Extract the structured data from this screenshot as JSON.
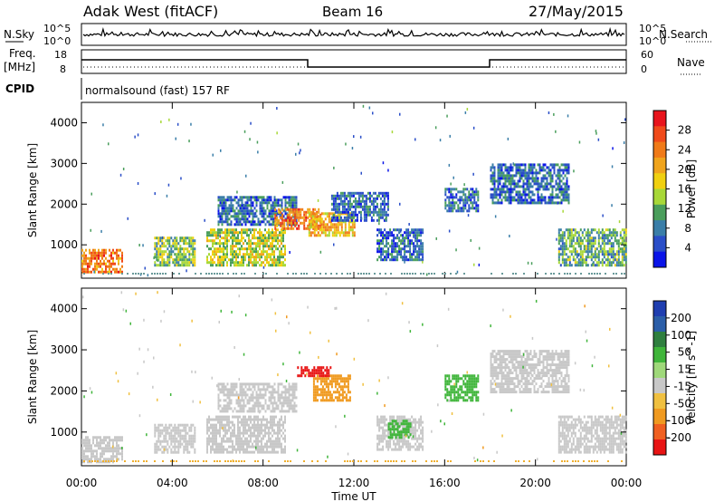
{
  "header": {
    "station": "Adak West (fitACF)",
    "beam": "Beam 16",
    "date": "27/May/2015"
  },
  "top_panels": {
    "nsky_label": "N.Sky",
    "nsearch_label": "N.Search",
    "freq_label_1": "Freq.",
    "freq_label_2": "[MHz]",
    "nave_label": "Nave",
    "cpid_label": "CPID",
    "cpid_text": "normalsound (fast) 157 RF",
    "noise_ticks_left": [
      "10^5",
      "10^0"
    ],
    "noise_ticks_right": [
      "10^5",
      "10^0"
    ],
    "freq_ticks": [
      "18",
      "8"
    ],
    "nave_ticks": [
      "60",
      "0"
    ]
  },
  "chart_data": [
    {
      "type": "heatmap",
      "title": "",
      "xlabel": "Time UT",
      "ylabel": "Slant Range [km]",
      "xticks": [
        "00:00",
        "04:00",
        "08:00",
        "12:00",
        "16:00",
        "20:00",
        "00:00"
      ],
      "xlim_hours": [
        0,
        24
      ],
      "ylim": [
        180,
        4500
      ],
      "yticks": [
        1000,
        2000,
        3000,
        4000
      ],
      "colorbar": {
        "label": "Power [dB]",
        "ticks": [
          28,
          24,
          20,
          16,
          12,
          8,
          4
        ],
        "colors": [
          "#e8141c",
          "#f04a1a",
          "#f07a18",
          "#f0a41c",
          "#f0d010",
          "#a8d838",
          "#4a9e5c",
          "#3a7ea8",
          "#2a4ec8",
          "#0a14e8"
        ]
      },
      "regions": [
        {
          "t0": 0.0,
          "t1": 1.8,
          "r0": 300,
          "r1": 900,
          "level": 24
        },
        {
          "t0": 3.2,
          "t1": 5.0,
          "r0": 500,
          "r1": 1200,
          "level": 14
        },
        {
          "t0": 5.5,
          "t1": 9.0,
          "r0": 500,
          "r1": 1400,
          "level": 16
        },
        {
          "t0": 6.0,
          "t1": 9.5,
          "r0": 1500,
          "r1": 2200,
          "level": 8
        },
        {
          "t0": 8.5,
          "t1": 10.5,
          "r0": 1400,
          "r1": 1900,
          "level": 24
        },
        {
          "t0": 10.0,
          "t1": 12.0,
          "r0": 1200,
          "r1": 1800,
          "level": 20
        },
        {
          "t0": 11.0,
          "t1": 13.5,
          "r0": 1600,
          "r1": 2300,
          "level": 8
        },
        {
          "t0": 13.0,
          "t1": 15.0,
          "r0": 600,
          "r1": 1400,
          "level": 8
        },
        {
          "t0": 16.0,
          "t1": 17.5,
          "r0": 1800,
          "r1": 2400,
          "level": 8
        },
        {
          "t0": 18.0,
          "t1": 21.5,
          "r0": 2000,
          "r1": 3000,
          "level": 8
        },
        {
          "t0": 21.0,
          "t1": 24.0,
          "r0": 500,
          "r1": 1400,
          "level": 12
        }
      ]
    },
    {
      "type": "heatmap",
      "title": "",
      "xlabel": "Time UT",
      "ylabel": "Slant Range [km]",
      "xticks": [
        "00:00",
        "04:00",
        "08:00",
        "12:00",
        "16:00",
        "20:00",
        "00:00"
      ],
      "xlim_hours": [
        0,
        24
      ],
      "ylim": [
        180,
        4500
      ],
      "yticks": [
        1000,
        2000,
        3000,
        4000
      ],
      "colorbar": {
        "label": "Velocity [m s^-1]",
        "ticks": [
          200,
          100,
          50,
          15,
          -15,
          -50,
          -100,
          -200
        ],
        "colors": [
          "#1f3eb0",
          "#2b5ea8",
          "#2f7f3f",
          "#3fb53a",
          "#9fd87a",
          "#c8c8c8",
          "#f0c040",
          "#f09a20",
          "#f06020",
          "#e81414"
        ]
      },
      "regions": [
        {
          "t0": 0.0,
          "t1": 1.8,
          "r0": 300,
          "r1": 900,
          "level": 0
        },
        {
          "t0": 3.2,
          "t1": 5.0,
          "r0": 500,
          "r1": 1200,
          "level": 0
        },
        {
          "t0": 5.5,
          "t1": 9.0,
          "r0": 500,
          "r1": 1400,
          "level": 0
        },
        {
          "t0": 6.0,
          "t1": 9.5,
          "r0": 1500,
          "r1": 2200,
          "level": 0
        },
        {
          "t0": 10.2,
          "t1": 11.8,
          "r0": 1800,
          "r1": 2400,
          "level": -60
        },
        {
          "t0": 9.5,
          "t1": 11.0,
          "r0": 2400,
          "r1": 2600,
          "level": -200
        },
        {
          "t0": 13.0,
          "t1": 15.0,
          "r0": 600,
          "r1": 1400,
          "level": 0
        },
        {
          "t0": 13.5,
          "t1": 14.5,
          "r0": 900,
          "r1": 1300,
          "level": 40
        },
        {
          "t0": 16.0,
          "t1": 17.5,
          "r0": 1800,
          "r1": 2400,
          "level": 40
        },
        {
          "t0": 18.0,
          "t1": 21.5,
          "r0": 2000,
          "r1": 3000,
          "level": 0
        },
        {
          "t0": 21.0,
          "t1": 24.0,
          "r0": 500,
          "r1": 1400,
          "level": 0
        }
      ]
    }
  ]
}
